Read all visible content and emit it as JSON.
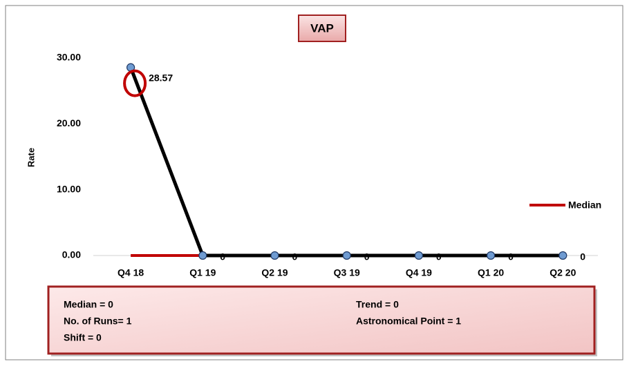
{
  "chart_data": {
    "type": "line",
    "title": "VAP",
    "ylabel": "Rate",
    "categories": [
      "Q4 18",
      "Q1 19",
      "Q2 19",
      "Q3 19",
      "Q4 19",
      "Q1 20",
      "Q2 20"
    ],
    "series": [
      {
        "values": [
          28.57,
          0,
          0,
          0,
          0,
          0,
          0
        ],
        "color": "#000000",
        "marker_color": "#6f9bd1",
        "data_labels": true
      },
      {
        "name": "Median",
        "values": [
          0,
          0,
          0,
          0,
          0,
          0,
          0
        ],
        "color": "#c00000"
      }
    ],
    "ylim": [
      0,
      30
    ],
    "yticks": [
      {
        "value": 0,
        "label": "0.00"
      },
      {
        "value": 10,
        "label": "10.00"
      },
      {
        "value": 20,
        "label": "20.00"
      },
      {
        "value": 30,
        "label": "30.00"
      }
    ],
    "grid": false,
    "legend": "right",
    "stats": [
      "Median = 0",
      "No. of Runs= 1",
      "Shift = 0",
      "Trend = 0",
      "Astronomical Point = 1"
    ]
  }
}
